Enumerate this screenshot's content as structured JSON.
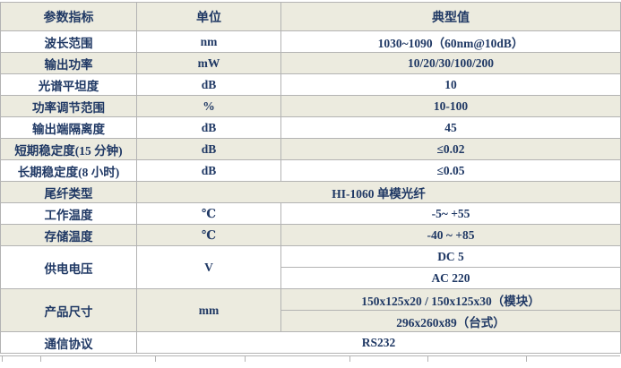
{
  "colors": {
    "header_bg": "#ECEBDF",
    "alt_row_bg": "#ECEBDF",
    "text": "#1F3864",
    "border": "#B3B3B3"
  },
  "table": {
    "headers": [
      "参数指标",
      "单位",
      "典型值"
    ],
    "rows": [
      {
        "param": "波长范围",
        "unit": "nm",
        "value": "1030~1090（60nm@10dB）"
      },
      {
        "param": "输出功率",
        "unit": "mW",
        "value": "10/20/30/100/200"
      },
      {
        "param": "光谱平坦度",
        "unit": "dB",
        "value": "10"
      },
      {
        "param": "功率调节范围",
        "unit": "%",
        "value": "10-100"
      },
      {
        "param": "输出端隔离度",
        "unit": "dB",
        "value": "45"
      },
      {
        "param": "短期稳定度(15 分钟)",
        "unit": "dB",
        "value": "≤0.02"
      },
      {
        "param": "长期稳定度(8 小时)",
        "unit": "dB",
        "value": "≤0.05"
      },
      {
        "param": "尾纤类型",
        "merged": true,
        "value": "HI-1060 单模光纤"
      },
      {
        "param": "工作温度",
        "unit": "℃",
        "value": "-5~ +55"
      },
      {
        "param": "存储温度",
        "unit": "℃",
        "value": "-40 ~ +85"
      },
      {
        "param": "供电电压",
        "unit": "V",
        "values": [
          "DC 5",
          "AC 220"
        ]
      },
      {
        "param": "产品尺寸",
        "unit": "mm",
        "values": [
          "150x125x20  /  150x125x30（模块）",
          "296x260x89（台式）"
        ]
      },
      {
        "param": "通信协议",
        "merged": true,
        "value": "RS232"
      }
    ]
  },
  "next_table_stub": {
    "tick_positions": [
      2,
      45,
      173,
      273,
      390,
      477,
      587
    ]
  }
}
